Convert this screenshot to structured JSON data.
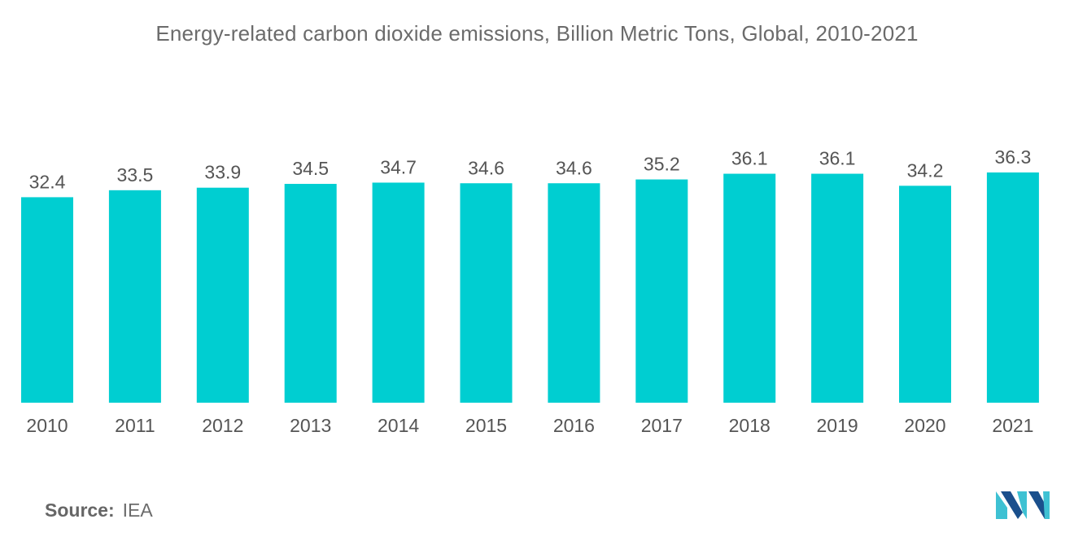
{
  "chart_data": {
    "type": "bar",
    "title": "Energy-related carbon dioxide emissions, Billion Metric Tons, Global, 2010-2021",
    "categories": [
      "2010",
      "2011",
      "2012",
      "2013",
      "2014",
      "2015",
      "2016",
      "2017",
      "2018",
      "2019",
      "2020",
      "2021"
    ],
    "values": [
      32.4,
      33.5,
      33.9,
      34.5,
      34.7,
      34.6,
      34.6,
      35.2,
      36.1,
      36.1,
      34.2,
      36.3
    ],
    "value_labels": [
      "32.4",
      "33.5",
      "33.9",
      "34.5",
      "34.7",
      "34.6",
      "34.6",
      "35.2",
      "36.1",
      "36.1",
      "34.2",
      "36.3"
    ],
    "xlabel": "",
    "ylabel": "",
    "ylim": [
      0,
      36.3
    ],
    "grid": false,
    "bar_color": "#00ced1"
  },
  "source": {
    "label": "Source:",
    "value": "IEA"
  },
  "logo": {
    "icon": "mordor-intelligence-logo-icon",
    "colors": [
      "#1a4f8c",
      "#3ec1d3"
    ]
  }
}
